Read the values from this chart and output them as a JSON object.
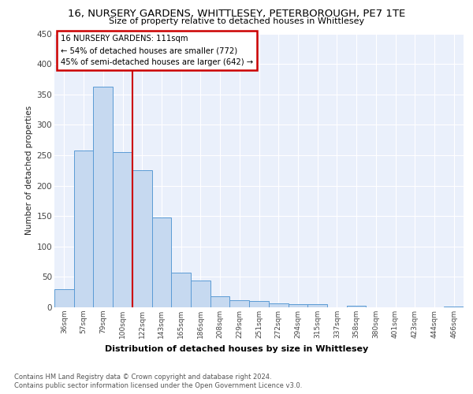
{
  "title": "16, NURSERY GARDENS, WHITTLESEY, PETERBOROUGH, PE7 1TE",
  "subtitle": "Size of property relative to detached houses in Whittlesey",
  "xlabel": "Distribution of detached houses by size in Whittlesey",
  "ylabel": "Number of detached properties",
  "categories": [
    "36sqm",
    "57sqm",
    "79sqm",
    "100sqm",
    "122sqm",
    "143sqm",
    "165sqm",
    "186sqm",
    "208sqm",
    "229sqm",
    "251sqm",
    "272sqm",
    "294sqm",
    "315sqm",
    "337sqm",
    "358sqm",
    "380sqm",
    "401sqm",
    "423sqm",
    "444sqm",
    "466sqm"
  ],
  "values": [
    30,
    258,
    362,
    255,
    225,
    148,
    57,
    44,
    18,
    12,
    10,
    6,
    5,
    5,
    0,
    3,
    0,
    0,
    0,
    0,
    1
  ],
  "bar_color": "#c6d9f0",
  "bar_edge_color": "#5b9bd5",
  "background_color": "#ffffff",
  "plot_bg_color": "#eaf0fb",
  "grid_color": "#ffffff",
  "red_line_label": "16 NURSERY GARDENS: 111sqm",
  "annotation_line1": "← 54% of detached houses are smaller (772)",
  "annotation_line2": "45% of semi-detached houses are larger (642) →",
  "annotation_box_color": "#ffffff",
  "annotation_box_edge": "#cc0000",
  "vline_color": "#cc0000",
  "vline_x": 3.5,
  "ylim": [
    0,
    450
  ],
  "yticks": [
    0,
    50,
    100,
    150,
    200,
    250,
    300,
    350,
    400,
    450
  ],
  "footer1": "Contains HM Land Registry data © Crown copyright and database right 2024.",
  "footer2": "Contains public sector information licensed under the Open Government Licence v3.0."
}
